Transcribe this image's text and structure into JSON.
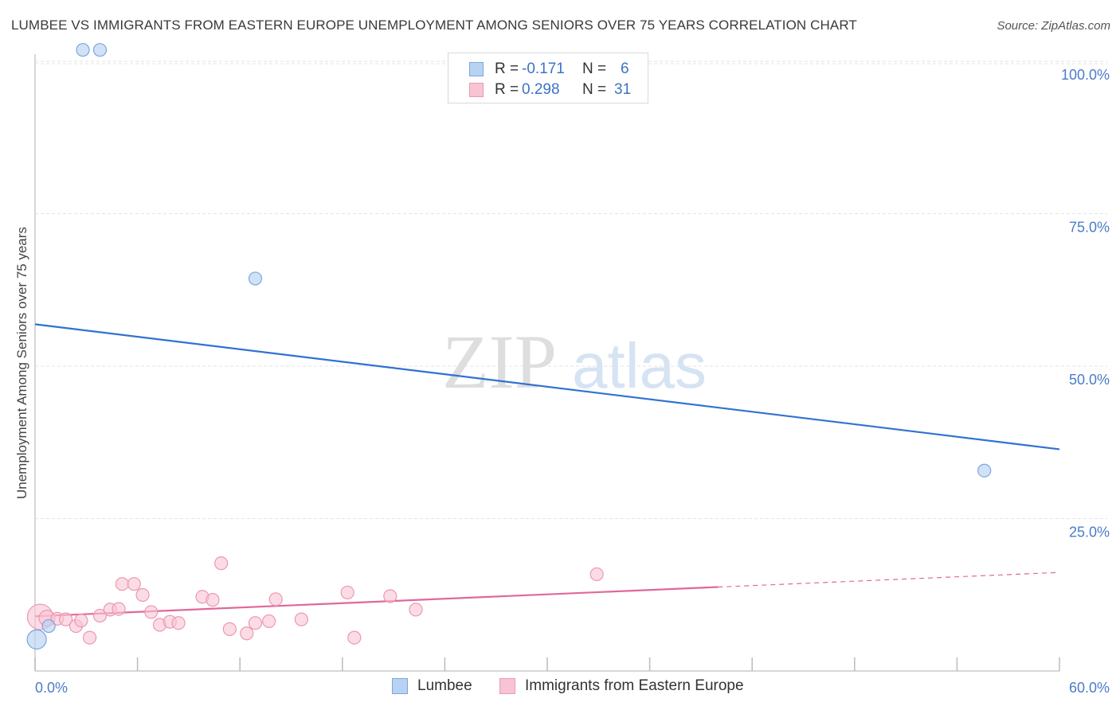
{
  "header": {
    "title": "LUMBEE VS IMMIGRANTS FROM EASTERN EUROPE UNEMPLOYMENT AMONG SENIORS OVER 75 YEARS CORRELATION CHART",
    "source": "Source: ZipAtlas.com"
  },
  "watermark": {
    "zip": "ZIP",
    "atlas": "atlas"
  },
  "legend": {
    "rows": [
      {
        "r_label": "R =",
        "r_value": "-0.171",
        "n_label": "N =",
        "n_value": "6"
      },
      {
        "r_label": "R =",
        "r_value": "0.298",
        "n_label": "N =",
        "n_value": "31"
      }
    ]
  },
  "bottom_legend": {
    "series1": "Lumbee",
    "series2": "Immigrants from Eastern Europe"
  },
  "colors": {
    "lumbee_fill": "#b8d2f3",
    "lumbee_stroke": "#7aa6de",
    "lumbee_line": "#2f72d0",
    "immig_fill": "#f8c4d4",
    "immig_stroke": "#eb98b2",
    "immig_line": "#e0689a",
    "grid": "#e3e3e3",
    "axis_text": "#4a7cc9"
  },
  "chart_data": {
    "type": "scatter",
    "title": "LUMBEE VS IMMIGRANTS FROM EASTERN EUROPE UNEMPLOYMENT AMONG SENIORS OVER 75 YEARS CORRELATION CHART",
    "xlabel": "",
    "ylabel": "Unemployment Among Seniors over 75 years",
    "xlim": [
      0,
      60
    ],
    "ylim": [
      0,
      100
    ],
    "x_tick_labels": [
      "0.0%",
      "60.0%"
    ],
    "x_minor_ticks": [
      0,
      6,
      12,
      18,
      24,
      30,
      36,
      42,
      48,
      54,
      60
    ],
    "y_ticks": [
      25,
      50,
      75,
      100
    ],
    "y_tick_labels": [
      "25.0%",
      "50.0%",
      "75.0%",
      "100.0%"
    ],
    "grid": true,
    "series": [
      {
        "name": "Lumbee",
        "R": -0.171,
        "N": 6,
        "points": [
          [
            2.8,
            102.0
          ],
          [
            3.8,
            102.0
          ],
          [
            12.9,
            64.5
          ],
          [
            55.6,
            33.0
          ],
          [
            0.1,
            5.3
          ],
          [
            0.8,
            7.5
          ]
        ],
        "sizes": [
          8,
          8,
          8,
          8,
          12,
          8
        ],
        "trend": {
          "x": [
            0,
            60
          ],
          "y": [
            57.0,
            36.5
          ],
          "dashed_from": null
        }
      },
      {
        "name": "Immigrants from Eastern Europe",
        "R": 0.298,
        "N": 31,
        "points": [
          [
            0.3,
            9.0
          ],
          [
            0.7,
            8.8
          ],
          [
            1.3,
            8.7
          ],
          [
            1.8,
            8.6
          ],
          [
            2.4,
            7.5
          ],
          [
            2.7,
            8.4
          ],
          [
            3.2,
            5.6
          ],
          [
            3.8,
            9.2
          ],
          [
            4.4,
            10.2
          ],
          [
            4.9,
            10.3
          ],
          [
            5.1,
            14.4
          ],
          [
            5.8,
            14.4
          ],
          [
            6.3,
            12.6
          ],
          [
            6.8,
            9.8
          ],
          [
            7.3,
            7.7
          ],
          [
            7.9,
            8.2
          ],
          [
            8.4,
            8.0
          ],
          [
            9.8,
            12.3
          ],
          [
            10.4,
            11.8
          ],
          [
            10.9,
            17.8
          ],
          [
            11.4,
            7.0
          ],
          [
            12.4,
            6.3
          ],
          [
            12.9,
            8.0
          ],
          [
            13.7,
            8.3
          ],
          [
            14.1,
            11.9
          ],
          [
            15.6,
            8.6
          ],
          [
            18.3,
            13.0
          ],
          [
            18.7,
            5.6
          ],
          [
            20.8,
            12.4
          ],
          [
            22.3,
            10.2
          ],
          [
            32.9,
            16.0
          ]
        ],
        "sizes": [
          16,
          10,
          8,
          8,
          8,
          8,
          8,
          8,
          8,
          8,
          8,
          8,
          8,
          8,
          8,
          8,
          8,
          8,
          8,
          8,
          8,
          8,
          8,
          8,
          8,
          8,
          8,
          8,
          8,
          8,
          8
        ],
        "trend": {
          "x": [
            0,
            60
          ],
          "y": [
            9.1,
            16.3
          ],
          "dashed_from": 40
        }
      }
    ]
  }
}
